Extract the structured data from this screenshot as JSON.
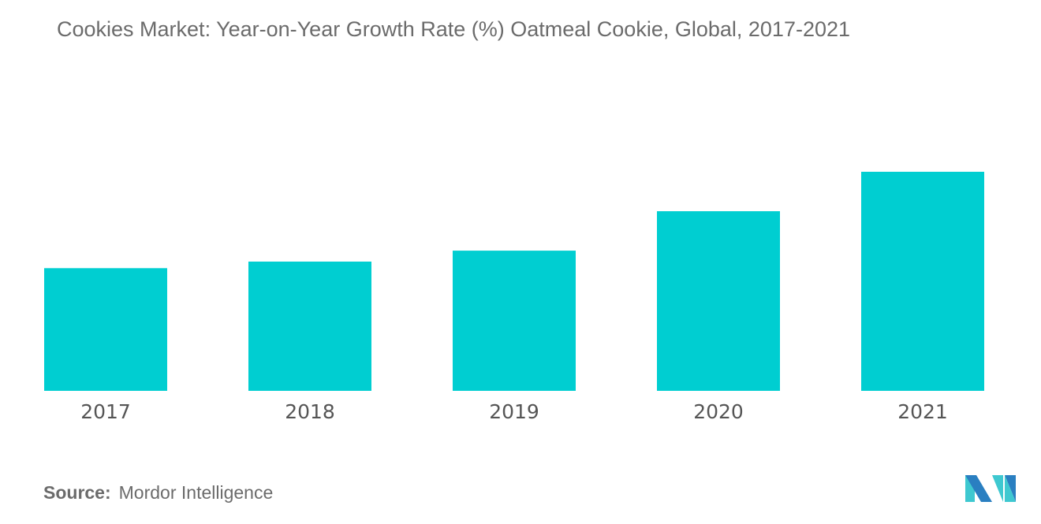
{
  "chart_data": {
    "type": "bar",
    "title": "Cookies Market: Year-on-Year Growth Rate (%) Oatmeal Cookie, Global, 2017-2021",
    "categories": [
      "2017",
      "2018",
      "2019",
      "2020",
      "2021"
    ],
    "values": [
      56,
      59,
      64,
      82,
      100
    ],
    "xlabel": "",
    "ylabel": "",
    "ylim": [
      0,
      100
    ],
    "grid": false,
    "legend": "none",
    "bar_color": "#00ced1"
  },
  "source": {
    "label": "Source:",
    "text": "Mordor Intelligence"
  },
  "logo": {
    "colors": [
      "#2a7fc1",
      "#3ec8d0"
    ]
  }
}
